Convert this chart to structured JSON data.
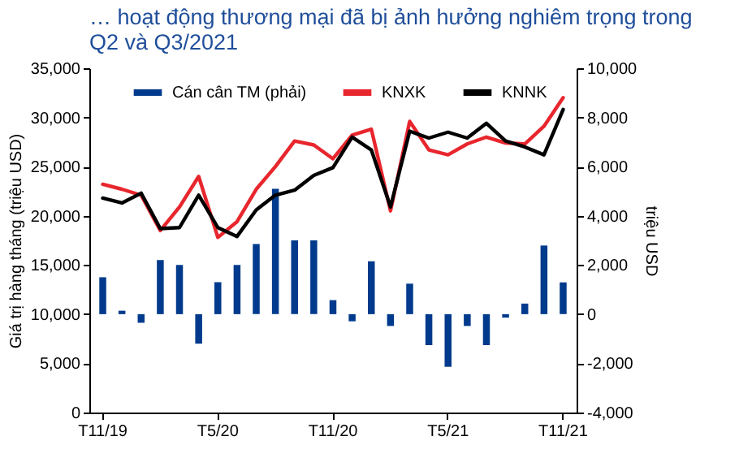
{
  "chart_data": {
    "type": "line",
    "title": "… hoạt động thương mại đã bị ảnh hưởng nghiêm trọng trong Q2 và Q3/2021",
    "ylabel": "Giá trị hàng tháng (triệu USD)",
    "y2label": "triệu USD",
    "categories": [
      "T11/19",
      null,
      null,
      null,
      null,
      null,
      "T5/20",
      null,
      null,
      null,
      null,
      null,
      "T11/20",
      null,
      null,
      null,
      null,
      null,
      "T5/21",
      null,
      null,
      null,
      null,
      null,
      "T11/21"
    ],
    "series": [
      {
        "name": "Cán cân TM (phải)",
        "type": "bar",
        "axis": "y2",
        "color": "#003a8c",
        "values": [
          1500,
          140,
          -350,
          2200,
          2000,
          -1200,
          1300,
          2000,
          2850,
          5100,
          3000,
          3000,
          570,
          -290,
          2150,
          -480,
          1240,
          -1260,
          -2140,
          -480,
          -1260,
          -140,
          430,
          2790,
          1290
        ]
      },
      {
        "name": "KNXK",
        "color": "#e8262d",
        "values": [
          23200,
          22700,
          22100,
          18500,
          20900,
          24000,
          17800,
          19400,
          22700,
          25000,
          27600,
          27200,
          25800,
          28200,
          28800,
          20500,
          29600,
          26700,
          26200,
          27300,
          28000,
          27400,
          27300,
          29100,
          32000
        ]
      },
      {
        "name": "KNNK",
        "color": "#000000",
        "values": [
          21800,
          21300,
          22300,
          18700,
          18800,
          22100,
          18800,
          17900,
          20600,
          22100,
          22600,
          24100,
          24900,
          28000,
          26700,
          20900,
          28600,
          27900,
          28500,
          27900,
          29400,
          27600,
          27000,
          26200,
          30800
        ]
      }
    ],
    "ylim": [
      0,
      35000
    ],
    "yticks": [
      {
        "value": 0,
        "label": "0"
      },
      {
        "value": 5000,
        "label": "5,000"
      },
      {
        "value": 10000,
        "label": "10,000"
      },
      {
        "value": 15000,
        "label": "15,000"
      },
      {
        "value": 20000,
        "label": "20,000"
      },
      {
        "value": 25000,
        "label": "25,000"
      },
      {
        "value": 30000,
        "label": "30,000"
      },
      {
        "value": 35000,
        "label": "35,000"
      }
    ],
    "y2lim": [
      -4000,
      10000
    ],
    "y2ticks": [
      {
        "value": -4000,
        "label": "-4,000"
      },
      {
        "value": -2000,
        "label": "-2,000"
      },
      {
        "value": 0,
        "label": "0"
      },
      {
        "value": 2000,
        "label": "2,000"
      },
      {
        "value": 4000,
        "label": "4,000"
      },
      {
        "value": 6000,
        "label": "6,000"
      },
      {
        "value": 8000,
        "label": "8,000"
      },
      {
        "value": 10000,
        "label": "10,000"
      }
    ],
    "grid": false,
    "legend": "top",
    "line_style": "solid"
  }
}
